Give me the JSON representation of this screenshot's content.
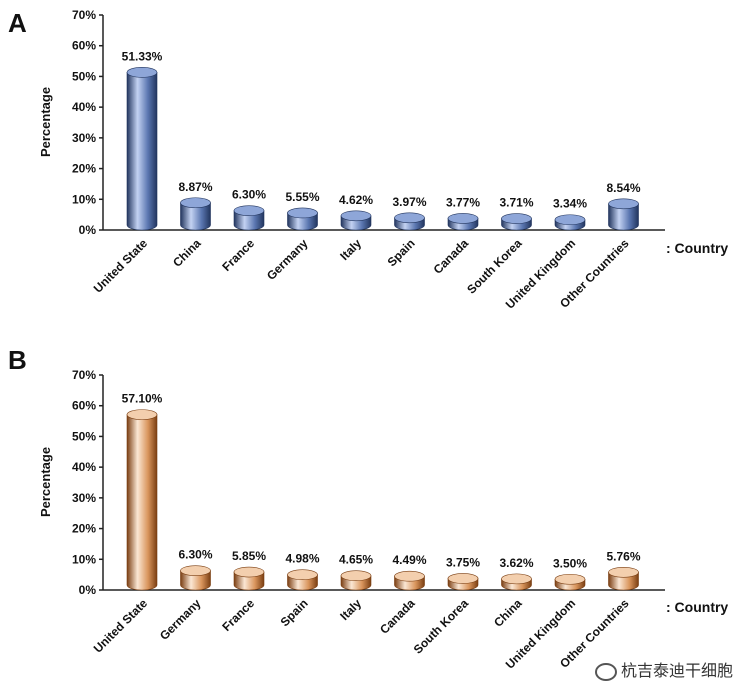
{
  "chart_data": [
    {
      "type": "bar",
      "panel_label": "A",
      "ylabel": "Percentage",
      "xlabel": ": Country",
      "ylim": [
        0,
        70
      ],
      "yticks": [
        "0%",
        "10%",
        "20%",
        "30%",
        "40%",
        "50%",
        "60%",
        "70%"
      ],
      "categories": [
        "United State",
        "China",
        "France",
        "Germany",
        "Italy",
        "Spain",
        "Canada",
        "South Korea",
        "United Kingdom",
        "Other Countries"
      ],
      "values": [
        51.33,
        8.87,
        6.3,
        5.55,
        4.62,
        3.97,
        3.77,
        3.71,
        3.34,
        8.54
      ],
      "value_labels": [
        "51.33%",
        "8.87%",
        "6.30%",
        "5.55%",
        "4.62%",
        "3.97%",
        "3.77%",
        "3.71%",
        "3.34%",
        "8.54%"
      ],
      "colors": {
        "dark": "#22355e",
        "mid": "#5a76b0",
        "light": "#c3d2f2",
        "top": "#8ea6d8"
      }
    },
    {
      "type": "bar",
      "panel_label": "B",
      "ylabel": "Percentage",
      "xlabel": ": Country",
      "ylim": [
        0,
        70
      ],
      "yticks": [
        "0%",
        "10%",
        "20%",
        "30%",
        "40%",
        "50%",
        "60%",
        "70%"
      ],
      "categories": [
        "United State",
        "Germany",
        "France",
        "Spain",
        "Italy",
        "Canada",
        "South Korea",
        "China",
        "United Kingdom",
        "Other Countries"
      ],
      "values": [
        57.1,
        6.3,
        5.85,
        4.98,
        4.65,
        4.49,
        3.75,
        3.62,
        3.5,
        5.76
      ],
      "value_labels": [
        "57.10%",
        "6.30%",
        "5.85%",
        "4.98%",
        "4.65%",
        "4.49%",
        "3.75%",
        "3.62%",
        "3.50%",
        "5.76%"
      ],
      "colors": {
        "dark": "#7a3e12",
        "mid": "#d9955c",
        "light": "#fbe7d4",
        "top": "#f3cfae"
      }
    }
  ],
  "watermark": "杭吉泰迪干细胞"
}
